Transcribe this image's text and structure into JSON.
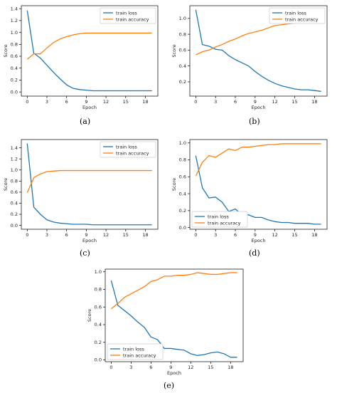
{
  "colors": {
    "loss": "#1f77b4",
    "accuracy": "#ff7f0e"
  },
  "captions": [
    "(a)",
    "(b)",
    "(c)",
    "(d)",
    "(e)"
  ],
  "chart_data": [
    {
      "type": "line",
      "xlabel": "Epoch",
      "ylabel": "Score",
      "xlim": [
        -0.9,
        19.9
      ],
      "ylim": [
        -0.07,
        1.45
      ],
      "xticks": [
        0,
        3,
        6,
        9,
        12,
        15,
        18
      ],
      "yticks": [
        0.0,
        0.2,
        0.4,
        0.6,
        0.8,
        1.0,
        1.2,
        1.4
      ],
      "legend": "top-right",
      "x": [
        0,
        1,
        2,
        3,
        4,
        5,
        6,
        7,
        8,
        9,
        10,
        11,
        12,
        13,
        14,
        15,
        16,
        17,
        18,
        19
      ],
      "series": [
        {
          "name": "train loss",
          "values": [
            1.37,
            0.65,
            0.57,
            0.45,
            0.33,
            0.22,
            0.12,
            0.06,
            0.04,
            0.03,
            0.02,
            0.02,
            0.02,
            0.02,
            0.02,
            0.02,
            0.02,
            0.02,
            0.02,
            0.02
          ]
        },
        {
          "name": "train accuracy",
          "values": [
            0.55,
            0.64,
            0.64,
            0.74,
            0.83,
            0.89,
            0.93,
            0.96,
            0.98,
            0.99,
            0.99,
            0.99,
            0.99,
            0.99,
            0.99,
            0.99,
            0.99,
            0.99,
            0.99,
            0.99
          ]
        }
      ]
    },
    {
      "type": "line",
      "xlabel": "Epoch",
      "ylabel": "Score",
      "xlim": [
        -0.9,
        19.9
      ],
      "ylim": [
        0.02,
        1.16
      ],
      "xticks": [
        0,
        3,
        6,
        9,
        12,
        15,
        18
      ],
      "yticks": [
        0.2,
        0.4,
        0.6,
        0.8,
        1.0
      ],
      "legend": "top-right",
      "x": [
        0,
        1,
        2,
        3,
        4,
        5,
        6,
        7,
        8,
        9,
        10,
        11,
        12,
        13,
        14,
        15,
        16,
        17,
        18,
        19
      ],
      "series": [
        {
          "name": "train loss",
          "values": [
            1.11,
            0.67,
            0.65,
            0.61,
            0.6,
            0.53,
            0.48,
            0.44,
            0.4,
            0.33,
            0.27,
            0.22,
            0.18,
            0.15,
            0.13,
            0.11,
            0.1,
            0.1,
            0.09,
            0.08
          ]
        },
        {
          "name": "train accuracy",
          "values": [
            0.54,
            0.58,
            0.6,
            0.64,
            0.67,
            0.71,
            0.74,
            0.78,
            0.81,
            0.83,
            0.85,
            0.88,
            0.91,
            0.92,
            0.93,
            0.94,
            0.95,
            0.95,
            0.95,
            0.96
          ]
        }
      ]
    },
    {
      "type": "line",
      "xlabel": "Epoch",
      "ylabel": "Score",
      "xlim": [
        -0.9,
        19.9
      ],
      "ylim": [
        -0.07,
        1.55
      ],
      "xticks": [
        0,
        3,
        6,
        9,
        12,
        15,
        18
      ],
      "yticks": [
        0.0,
        0.2,
        0.4,
        0.6,
        0.8,
        1.0,
        1.2,
        1.4
      ],
      "legend": "top-right",
      "x": [
        0,
        1,
        2,
        3,
        4,
        5,
        6,
        7,
        8,
        9,
        10,
        11,
        12,
        13,
        14,
        15,
        16,
        17,
        18,
        19
      ],
      "series": [
        {
          "name": "train loss",
          "values": [
            1.48,
            0.33,
            0.2,
            0.1,
            0.06,
            0.04,
            0.03,
            0.02,
            0.02,
            0.02,
            0.01,
            0.01,
            0.01,
            0.01,
            0.01,
            0.01,
            0.01,
            0.01,
            0.01,
            0.01
          ]
        },
        {
          "name": "train accuracy",
          "values": [
            0.59,
            0.86,
            0.93,
            0.97,
            0.98,
            0.99,
            0.99,
            0.99,
            0.99,
            0.99,
            0.99,
            0.99,
            0.99,
            0.99,
            0.99,
            0.99,
            0.99,
            0.99,
            0.99,
            0.99
          ]
        }
      ]
    },
    {
      "type": "line",
      "xlabel": "Epoch",
      "ylabel": "Score",
      "xlim": [
        -0.9,
        19.9
      ],
      "ylim": [
        -0.02,
        1.04
      ],
      "xticks": [
        0,
        3,
        6,
        9,
        12,
        15,
        18
      ],
      "yticks": [
        0.0,
        0.2,
        0.4,
        0.6,
        0.8,
        1.0
      ],
      "legend": "bottom-left",
      "x": [
        0,
        1,
        2,
        3,
        4,
        5,
        6,
        7,
        8,
        9,
        10,
        11,
        12,
        13,
        14,
        15,
        16,
        17,
        18,
        19
      ],
      "series": [
        {
          "name": "train loss",
          "values": [
            0.85,
            0.47,
            0.35,
            0.36,
            0.3,
            0.19,
            0.22,
            0.15,
            0.15,
            0.12,
            0.12,
            0.09,
            0.07,
            0.06,
            0.06,
            0.05,
            0.05,
            0.05,
            0.04,
            0.04
          ]
        },
        {
          "name": "train accuracy",
          "values": [
            0.61,
            0.77,
            0.85,
            0.83,
            0.88,
            0.93,
            0.91,
            0.95,
            0.95,
            0.96,
            0.97,
            0.98,
            0.98,
            0.99,
            0.99,
            0.99,
            0.99,
            0.99,
            0.99,
            0.99
          ]
        }
      ]
    },
    {
      "type": "line",
      "xlabel": "Epoch",
      "ylabel": "Score",
      "xlim": [
        -0.9,
        19.9
      ],
      "ylim": [
        -0.02,
        1.03
      ],
      "xticks": [
        0,
        3,
        6,
        9,
        12,
        15,
        18
      ],
      "yticks": [
        0.0,
        0.2,
        0.4,
        0.6,
        0.8,
        1.0
      ],
      "legend": "bottom-left",
      "x": [
        0,
        1,
        2,
        3,
        4,
        5,
        6,
        7,
        8,
        9,
        10,
        11,
        12,
        13,
        14,
        15,
        16,
        17,
        18,
        19
      ],
      "series": [
        {
          "name": "train loss",
          "values": [
            0.9,
            0.62,
            0.56,
            0.5,
            0.43,
            0.37,
            0.26,
            0.23,
            0.13,
            0.13,
            0.12,
            0.11,
            0.07,
            0.05,
            0.06,
            0.08,
            0.09,
            0.07,
            0.03,
            0.03
          ]
        },
        {
          "name": "train accuracy",
          "values": [
            0.58,
            0.64,
            0.71,
            0.75,
            0.79,
            0.83,
            0.89,
            0.91,
            0.95,
            0.95,
            0.96,
            0.96,
            0.97,
            0.99,
            0.98,
            0.97,
            0.97,
            0.98,
            0.99,
            0.99
          ]
        }
      ]
    }
  ]
}
